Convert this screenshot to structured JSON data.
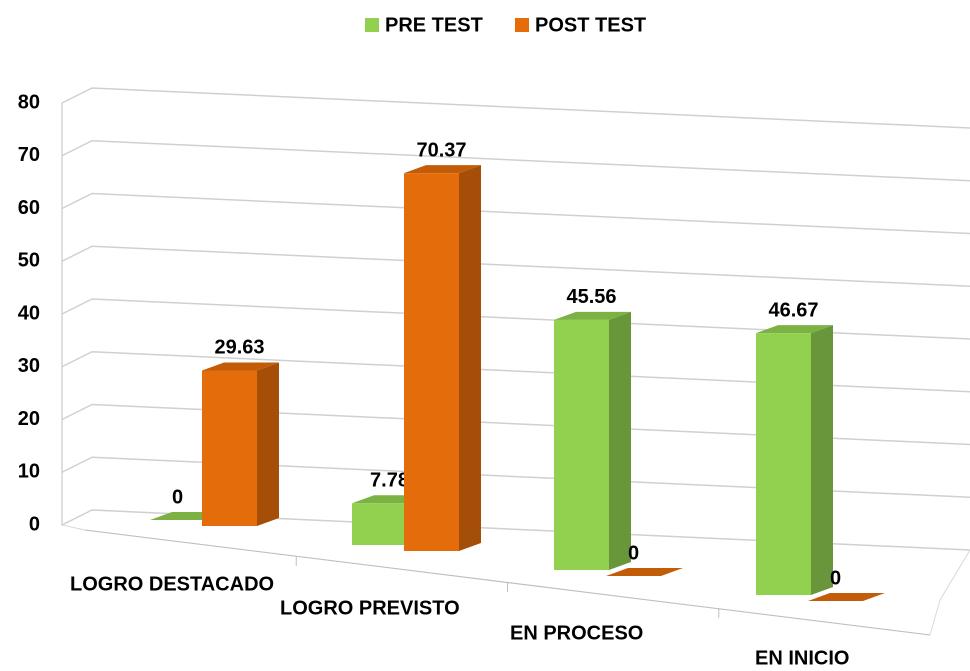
{
  "chart_data": {
    "type": "bar3d",
    "categories": [
      "LOGRO DESTACADO",
      "LOGRO PREVISTO",
      "EN PROCESO",
      "EN INICIO"
    ],
    "series": [
      {
        "name": "PRE TEST",
        "color": "#92d050",
        "values": [
          0,
          7.78,
          45.56,
          46.67
        ]
      },
      {
        "name": "POST TEST",
        "color": "#e46c0a",
        "values": [
          29.63,
          70.37,
          0,
          0
        ]
      }
    ],
    "ylim": [
      0,
      80
    ],
    "yticks": [
      0,
      10,
      20,
      30,
      40,
      50,
      60,
      70,
      80
    ],
    "grid": true,
    "legend": "top"
  }
}
